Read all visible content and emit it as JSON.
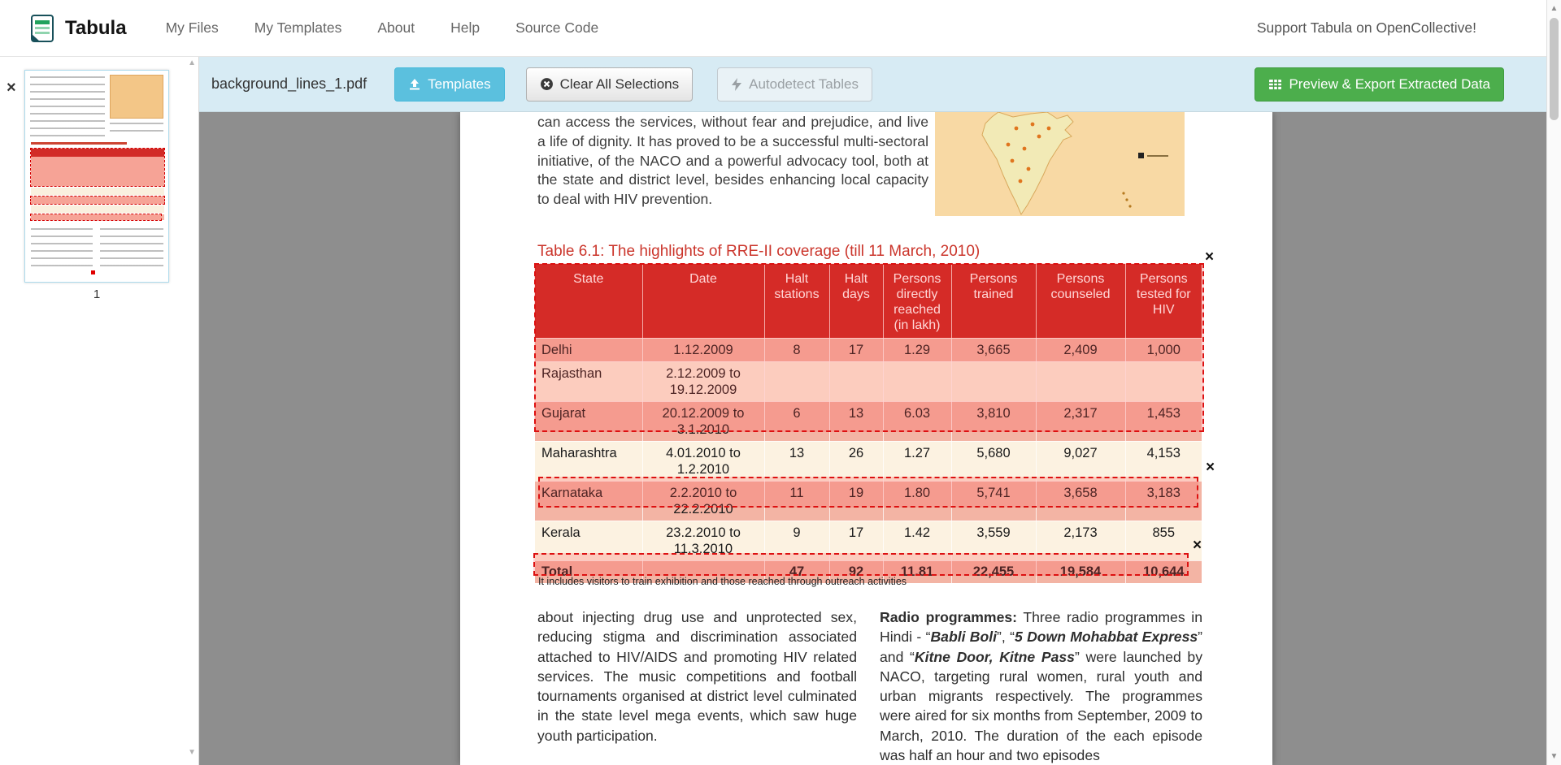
{
  "navbar": {
    "brand": "Tabula",
    "items": [
      {
        "label": "My Files"
      },
      {
        "label": "My Templates"
      },
      {
        "label": "About"
      },
      {
        "label": "Help"
      },
      {
        "label": "Source Code"
      }
    ],
    "support_label": "Support Tabula on OpenCollective!"
  },
  "toolbar": {
    "filename": "background_lines_1.pdf",
    "templates_button": "Templates",
    "clear_button": "Clear All Selections",
    "autodetect_button": "Autodetect Tables",
    "export_button": "Preview & Export Extracted Data"
  },
  "sidebar": {
    "page_number": "1"
  },
  "pdf_page": {
    "intro_paragraph": "can access the services, without fear and prejudice, and live a life of dignity. It has proved to be a successful multi-sectoral initiative, of the NACO and a powerful advocacy tool, both at the state and district level, besides enhancing local capacity to deal with HIV prevention.",
    "table_title": "Table 6.1: The highlights of RRE-II coverage (till 11 March, 2010)",
    "table": {
      "headers": [
        "State",
        "Date",
        "Halt stations",
        "Halt days",
        "Persons directly reached (in lakh)",
        "Persons trained",
        "Persons counseled",
        "Persons tested for HIV"
      ],
      "rows": [
        [
          "Delhi",
          "1.12.2009",
          "8",
          "17",
          "1.29",
          "3,665",
          "2,409",
          "1,000"
        ],
        [
          "Rajasthan",
          "2.12.2009 to 19.12.2009",
          "",
          "",
          "",
          "",
          "",
          ""
        ],
        [
          "Gujarat",
          "20.12.2009 to 3.1.2010",
          "6",
          "13",
          "6.03",
          "3,810",
          "2,317",
          "1,453"
        ],
        [
          "Maharashtra",
          "4.01.2010 to 1.2.2010",
          "13",
          "26",
          "1.27",
          "5,680",
          "9,027",
          "4,153"
        ],
        [
          "Karnataka",
          "2.2.2010 to 22.2.2010",
          "11",
          "19",
          "1.80",
          "5,741",
          "3,658",
          "3,183"
        ],
        [
          "Kerala",
          "23.2.2010 to 11.3.2010",
          "9",
          "17",
          "1.42",
          "3,559",
          "2,173",
          "855"
        ],
        [
          "Total",
          "",
          "47",
          "92",
          "11.81",
          "22,455",
          "19,584",
          "10,644"
        ]
      ]
    },
    "footnote": "It includes visitors to train exhibition and those reached through outreach activities",
    "left_column": "about injecting drug use and unprotected sex, reducing stigma and discrimination associated attached to HIV/AIDS and promoting HIV related services. The music competitions and football tournaments organised at district level culminated in the state level mega events, which saw huge youth participation.",
    "right_column": {
      "lead": "Radio programmes:",
      "segments": [
        {
          "text": " Three radio programmes in Hindi - “",
          "em": false
        },
        {
          "text": "Babli Boli",
          "em": true
        },
        {
          "text": "”, “",
          "em": false
        },
        {
          "text": "5 Down Mohabbat Express",
          "em": true
        },
        {
          "text": "” and “",
          "em": false
        },
        {
          "text": "Kitne Door, Kitne Pass",
          "em": true
        },
        {
          "text": "” were launched by NACO, targeting rural women, rural youth and urban migrants respectively. The programmes were aired for six months from September, 2009 to March, 2010. The duration of the each episode was half an hour and two episodes",
          "em": false
        }
      ]
    }
  },
  "icons": {
    "close": "×",
    "scroll_up": "▲",
    "scroll_down": "▼"
  },
  "colors": {
    "accent_blue": "#5bc0de",
    "accent_green": "#4cae4c",
    "toolbar_bg": "#d7ebf4",
    "table_header_red": "#c9241f",
    "row_pink": "#f3b4a4",
    "row_cream": "#fcf2e1",
    "selection_red": "#dd1111"
  }
}
